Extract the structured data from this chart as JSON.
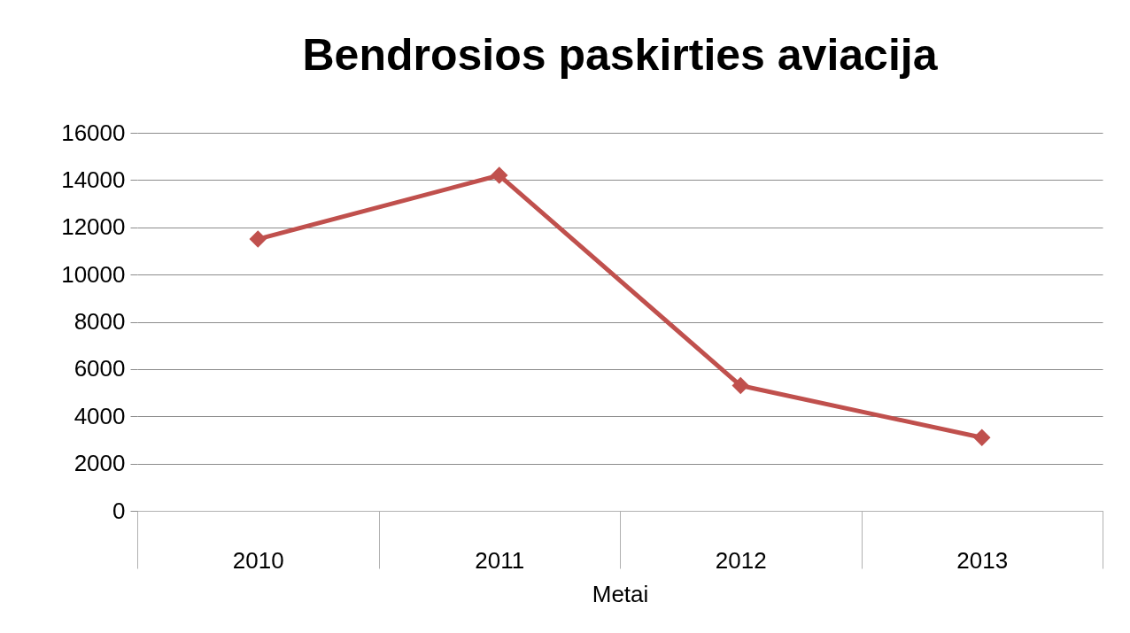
{
  "chart_data": {
    "type": "line",
    "title": "Bendrosios paskirties aviacija",
    "xlabel": "Metai",
    "categories": [
      "2010",
      "2011",
      "2012",
      "2013"
    ],
    "series": [
      {
        "color": "#c0504d",
        "values": [
          11500,
          14200,
          5300,
          3100
        ]
      }
    ],
    "ylim": [
      0,
      16000
    ],
    "yticks": [
      0,
      2000,
      4000,
      6000,
      8000,
      10000,
      12000,
      14000,
      16000
    ],
    "grid": "y",
    "marker": "diamond",
    "line_style": "solid",
    "legend": false
  }
}
